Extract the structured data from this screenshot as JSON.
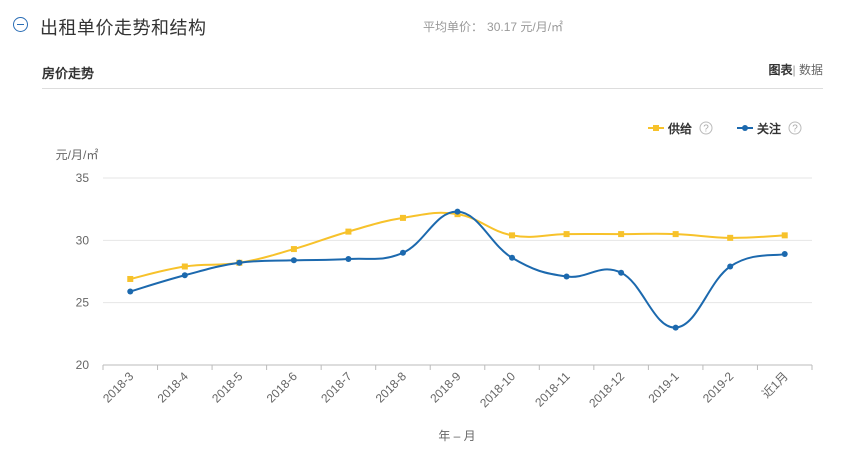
{
  "header": {
    "title": "出租单价走势和结构",
    "avg_label": "平均单价：",
    "avg_value": "30.17 元/月/㎡"
  },
  "section": {
    "title": "房价走势",
    "tab_chart": "图表",
    "tab_sep": "|",
    "tab_data": "数据"
  },
  "colors": {
    "supply": "#f7c22b",
    "attention": "#1c69ae"
  },
  "chart_data": {
    "type": "line",
    "title": "房价走势",
    "ylabel": "元/月/㎡",
    "xlabel": "年 – 月",
    "ylim": [
      20,
      35
    ],
    "yticks": [
      20,
      25,
      30,
      35
    ],
    "categories": [
      "2018-3",
      "2018-4",
      "2018-5",
      "2018-6",
      "2018-7",
      "2018-8",
      "2018-9",
      "2018-10",
      "2018-11",
      "2018-12",
      "2019-1",
      "2019-2",
      "近1月"
    ],
    "series": [
      {
        "name": "供给",
        "help": "?",
        "values": [
          26.9,
          27.9,
          28.2,
          29.3,
          30.7,
          31.8,
          32.1,
          30.4,
          30.5,
          30.5,
          30.5,
          30.2,
          30.4
        ]
      },
      {
        "name": "关注",
        "help": "?",
        "values": [
          25.9,
          27.2,
          28.2,
          28.4,
          28.5,
          29.0,
          32.3,
          28.6,
          27.1,
          27.4,
          23.0,
          27.9,
          28.9
        ]
      }
    ],
    "legend_position": "top-right",
    "grid": true
  }
}
